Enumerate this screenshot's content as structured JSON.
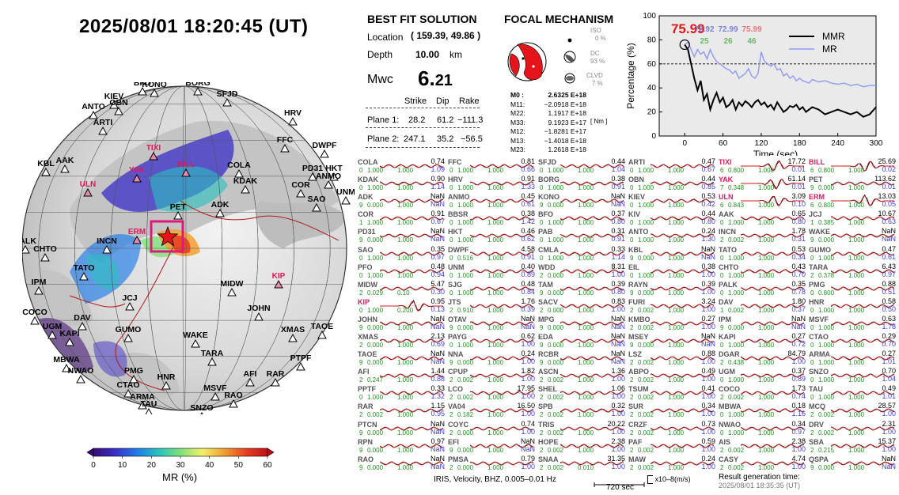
{
  "title": "2025/08/01  18:20:45 (UT)",
  "map": {
    "stations_black": [
      "BFO",
      "KONO",
      "BORG",
      "KIEV",
      "OBN",
      "ANTO",
      "SFJD",
      "ARTI",
      "HRV",
      "DWPF",
      "FFC",
      "KBL",
      "AAK",
      "PD31",
      "HKT",
      "COLA",
      "ANMO",
      "COR",
      "SAO",
      "KDAK",
      "UNM",
      "PALK",
      "CHTO",
      "ADK",
      "PET",
      "INCN",
      "TATO",
      "IPM",
      "MIDW",
      "JCJ",
      "COCO",
      "DAV",
      "JOHN",
      "WAKE",
      "GUMO",
      "UGM",
      "KAPI",
      "XMAS",
      "TAOE",
      "MBWA",
      "NWAO",
      "PTPF",
      "TARA",
      "AFI",
      "RAR",
      "PMG",
      "HNR",
      "CTAO",
      "MSVF",
      "ARMA",
      "TAU",
      "RAO",
      "SNZO"
    ],
    "stations_red": [
      "TIXI",
      "YAK",
      "BILL",
      "ULN",
      "ERM",
      "KIP"
    ],
    "colorbar": {
      "title": "MR (%)",
      "ticks": [
        "0",
        "10",
        "20",
        "30",
        "40",
        "50",
        "60"
      ],
      "colors": [
        "#3b0a73",
        "#3a2ec8",
        "#1f7be8",
        "#27c2c0",
        "#7fe07a",
        "#f3f06a",
        "#f0a030",
        "#e84020",
        "#c01018"
      ]
    }
  },
  "solution": {
    "heading": "BEST FIT SOLUTION",
    "location_label": "Location",
    "location_value": "( 159.39,  49.86 )",
    "depth_label": "Depth",
    "depth_value": "10.00",
    "depth_unit": "km",
    "mw_label": "Mwc",
    "mw_int": "6.",
    "mw_dec": "21",
    "plane_headers": [
      "Strike",
      "Dip",
      "Rake"
    ],
    "planes": [
      {
        "label": "Plane 1:",
        "strike": "28.2",
        "dip": "61.2",
        "rake": "−111.3"
      },
      {
        "label": "Plane 2:",
        "strike": "247.1",
        "dip": "35.2",
        "rake": "−56.5"
      }
    ]
  },
  "focal": {
    "heading": "FOCAL MECHANISM",
    "iso_label": "ISO",
    "iso_value": "0 %",
    "dc_label": "DC",
    "dc_value": "93 %",
    "clvd_label": "CLVD",
    "clvd_value": "7 %",
    "tensor": [
      {
        "k": "M0 :",
        "v": "2.6325 E+18"
      },
      {
        "k": "M11:",
        "v": "−2.0918 E+18"
      },
      {
        "k": "M22:",
        "v": "1.1917 E+18"
      },
      {
        "k": "M33:",
        "v": "9.1923 E+17"
      },
      {
        "k": "M12:",
        "v": "−1.8281 E+17"
      },
      {
        "k": "M13:",
        "v": "−1.4018 E+18"
      },
      {
        "k": "M23:",
        "v": "1.2618 E+18"
      }
    ],
    "unit": "[ Nm ]"
  },
  "chart_data": {
    "type": "line",
    "xlabel": "Time (sec)",
    "ylabel": "Percentage (%)",
    "xlim": [
      -40,
      300
    ],
    "ylim": [
      0,
      100
    ],
    "xticks": [
      0,
      60,
      120,
      180,
      240,
      300
    ],
    "yticks": [
      0,
      20,
      40,
      60,
      80,
      100
    ],
    "threshold": 60,
    "peak_label": "75.99",
    "annotations": [
      {
        "text": "78.92",
        "color": "#7b83d6"
      },
      {
        "text": "72.99",
        "color": "#7b83d6"
      },
      {
        "text": "75.99",
        "color": "#e07a80"
      },
      {
        "text": "25",
        "color": "#6ab86a"
      },
      {
        "text": "26",
        "color": "#6ab86a"
      },
      {
        "text": "46",
        "color": "#6ab86a"
      }
    ],
    "legend": "top-right",
    "series": [
      {
        "name": "MMR",
        "color": "#000000",
        "x": [
          0,
          5,
          10,
          15,
          20,
          25,
          30,
          35,
          40,
          45,
          50,
          55,
          60,
          65,
          70,
          75,
          80,
          85,
          90,
          95,
          100,
          105,
          110,
          115,
          120,
          125,
          130,
          135,
          140,
          145,
          150,
          155,
          160,
          165,
          170,
          175,
          180,
          185,
          190,
          195,
          200,
          210,
          220,
          230,
          240,
          250,
          260,
          270,
          280,
          290,
          300
        ],
        "y": [
          76,
          72,
          60,
          48,
          38,
          46,
          30,
          35,
          22,
          30,
          36,
          28,
          32,
          24,
          26,
          30,
          22,
          28,
          25,
          29,
          27,
          24,
          28,
          30,
          26,
          28,
          24,
          26,
          22,
          28,
          24,
          20,
          22,
          25,
          24,
          26,
          22,
          24,
          20,
          22,
          24,
          22,
          18,
          20,
          22,
          20,
          18,
          20,
          16,
          18,
          24
        ]
      },
      {
        "name": "MR",
        "color": "#8e9af0",
        "x": [
          0,
          5,
          10,
          15,
          20,
          25,
          30,
          35,
          40,
          45,
          50,
          55,
          60,
          65,
          70,
          75,
          80,
          85,
          90,
          95,
          100,
          105,
          110,
          115,
          120,
          125,
          130,
          135,
          140,
          145,
          150,
          155,
          160,
          165,
          170,
          175,
          180,
          185,
          190,
          195,
          200,
          210,
          220,
          230,
          240,
          250,
          260,
          270,
          280,
          290,
          300
        ],
        "y": [
          76,
          78,
          72,
          66,
          72,
          68,
          70,
          64,
          72,
          66,
          62,
          60,
          58,
          56,
          55,
          52,
          54,
          48,
          50,
          52,
          56,
          50,
          48,
          52,
          70,
          62,
          60,
          58,
          60,
          55,
          56,
          50,
          52,
          48,
          50,
          46,
          48,
          46,
          45,
          44,
          47,
          45,
          46,
          44,
          43,
          44,
          42,
          43,
          41,
          42,
          42
        ]
      }
    ]
  },
  "waveforms": [
    [
      [
        "COLA",
        "0.74",
        "1.09",
        "0",
        "1.000",
        "1.000"
      ],
      [
        "KDAK",
        "0.90",
        "1.14",
        "0",
        "1.000",
        "1.000"
      ],
      [
        "ADK",
        "NaN",
        "NaN",
        "9",
        "0.000",
        "1.000"
      ],
      [
        "COR",
        "0.91",
        "0.67",
        "1",
        "1.000",
        "1.000"
      ],
      [
        "PD31",
        "NaN",
        "NaN",
        "9",
        "0.000",
        "1.000"
      ],
      [
        "SAO",
        "0.35",
        "0.97",
        "0",
        "1.000",
        "1.000"
      ],
      [
        "PFO",
        "0.48",
        "0.94",
        "0",
        "1.000",
        "1.000"
      ],
      [
        "MIDW",
        "5.47",
        "0.30",
        "2",
        "0.029",
        "0.10"
      ],
      [
        "KIP",
        "0.95",
        "0.13",
        "0",
        "1.000",
        "0.200"
      ],
      [
        "JOHN",
        "NaN",
        "NaN",
        "9",
        "0.000",
        "1.000"
      ],
      [
        "XMAS",
        "2.13",
        "0.69",
        "2",
        "0.000",
        "1.000"
      ],
      [
        "TAOE",
        "NaN",
        "NaN",
        "9",
        "0.000",
        "1.000"
      ],
      [
        "AFI",
        "1.44",
        "0.88",
        "2",
        "0.247",
        "1.000"
      ],
      [
        "PPTF",
        "0.33",
        "1.32",
        "0",
        "1.000",
        "1.000"
      ],
      [
        "RAR",
        "1.15",
        "0.95",
        "2",
        "0.002",
        "1.000"
      ],
      [
        "PTCN",
        "NaN",
        "NaN",
        "9",
        "0.000",
        "1.000"
      ],
      [
        "RPN",
        "0.97",
        "NaN",
        "9",
        "0.000",
        "1.000"
      ],
      [
        "RAO",
        "NaN",
        "NaN",
        "9",
        "0.000",
        "1.000"
      ]
    ],
    [
      [
        "FFC",
        "0.81",
        "0.66",
        "0",
        "1.000",
        "1.000"
      ],
      [
        "HRV",
        "0.91",
        "1.33",
        "0",
        "1.000",
        "1.000"
      ],
      [
        "ANMO",
        "0.45",
        "0.61",
        "0",
        "1.000",
        "1.000"
      ],
      [
        "BBSR",
        "0.38",
        "1.42",
        "0",
        "1.000",
        "1.000"
      ],
      [
        "HKT",
        "0.46",
        "0.62",
        "0",
        "1.000",
        "1.000"
      ],
      [
        "DWPF",
        "4.58",
        "0.91",
        "0",
        "0.516",
        "1.000"
      ],
      [
        "UNM",
        "0.40",
        "0.89",
        "0",
        "1.000",
        "1.000"
      ],
      [
        "SJG",
        "0.48",
        "0.84",
        "0",
        "1.000",
        "1.000"
      ],
      [
        "JTS",
        "1.76",
        "0.39",
        "2",
        "0.910",
        "1.000"
      ],
      [
        "OTAV",
        "NaN",
        "NaN",
        "9",
        "0.000",
        "1.000"
      ],
      [
        "PAYG",
        "0.62",
        "1.00",
        "0",
        "1.000",
        "1.000"
      ],
      [
        "NNA",
        "0.24",
        "1.00",
        "9",
        "0.000",
        "1.000"
      ],
      [
        "CPUP",
        "1.82",
        "1.00",
        "2",
        "0.002",
        "1.000"
      ],
      [
        "LCO",
        "17.95",
        "1.00",
        "2",
        "0.002",
        "1.000"
      ],
      [
        "VA04",
        "16.50",
        "1.00",
        "2",
        "0.182",
        "1.000"
      ],
      [
        "COYC",
        "0.74",
        "1.00",
        "2",
        "0.000",
        "1.000"
      ],
      [
        "EFI",
        "NaN",
        "NaN",
        "9",
        "0.000",
        "1.000"
      ],
      [
        "PMSA",
        "0.79",
        "1.00",
        "2",
        "0.000",
        "1.000"
      ]
    ],
    [
      [
        "SFJD",
        "0.44",
        "1.04",
        "0",
        "1.000",
        "1.000"
      ],
      [
        "BORG",
        "0.38",
        "0.91",
        "0",
        "1.000",
        "1.000"
      ],
      [
        "KONO",
        "NaN",
        "NaN",
        "9",
        "0.000",
        "1.000"
      ],
      [
        "BFO",
        "0.37",
        "0.80",
        "0",
        "1.000",
        "1.000"
      ],
      [
        "PAB",
        "0.31",
        "0.91",
        "0",
        "1.000",
        "1.000"
      ],
      [
        "CMLA",
        "0.33",
        "1.14",
        "0",
        "1.000",
        "1.000"
      ],
      [
        "WDD",
        "8.31",
        "1.00",
        "2",
        "0.000",
        "1.000"
      ],
      [
        "TAM",
        "0.39",
        "0.80",
        "9",
        "0.000",
        "1.000"
      ],
      [
        "SACV",
        "0.83",
        "1.00",
        "2",
        "0.000",
        "1.000"
      ],
      [
        "MPG",
        "NaN",
        "NaN",
        "9",
        "0.000",
        "1.000"
      ],
      [
        "EDA",
        "NaN",
        "NaN",
        "9",
        "0.000",
        "1.000"
      ],
      [
        "RCBR",
        "NaN",
        "NaN",
        "9",
        "0.000",
        "1.000"
      ],
      [
        "ASCN",
        "1.36",
        "1.00",
        "2",
        "0.002",
        "1.000"
      ],
      [
        "SHEL",
        "1.06",
        "1.00",
        "2",
        "0.002",
        "1.000"
      ],
      [
        "SPB",
        "0.32",
        "1.00",
        "2",
        "0.002",
        "1.000"
      ],
      [
        "TRIS",
        "20.22",
        "1.00",
        "2",
        "0.002",
        "1.000"
      ],
      [
        "HOPE",
        "2.38",
        "1.00",
        "2",
        "0.002",
        "1.000"
      ],
      [
        "SNAA",
        "31.35",
        "1.00",
        "2",
        "0.002",
        "0.010"
      ]
    ],
    [
      [
        "ARTI",
        "0.47",
        "0.67",
        "0",
        "1.000",
        "1.000"
      ],
      [
        "OBN",
        "0.44",
        "0.85",
        "0",
        "1.000",
        "1.000"
      ],
      [
        "KIEV",
        "0.53",
        "0.42",
        "0",
        "1.000",
        "1.000"
      ],
      [
        "KIV",
        "0.44",
        "0.80",
        "0",
        "1.000",
        "1.000"
      ],
      [
        "ANTO",
        "0.24",
        "1.30",
        "0",
        "1.000",
        "1.000"
      ],
      [
        "KBL",
        "NaN",
        "NaN",
        "9",
        "0.000",
        "1.000"
      ],
      [
        "EIL",
        "0.38",
        "1.00",
        "0",
        "1.000",
        "1.000"
      ],
      [
        "RAYN",
        "0.39",
        "1.00",
        "9",
        "0.000",
        "1.000"
      ],
      [
        "FURI",
        "3.24",
        "1.00",
        "2",
        "0.002",
        "1.000"
      ],
      [
        "KMBO",
        "0.27",
        "1.00",
        "2",
        "0.002",
        "1.000"
      ],
      [
        "MSEY",
        "NaN",
        "NaN",
        "9",
        "0.000",
        "1.000"
      ],
      [
        "LSZ",
        "0.88",
        "1.00",
        "2",
        "0.002",
        "1.000"
      ],
      [
        "ABPO",
        "0.49",
        "1.00",
        "2",
        "0.002",
        "1.000"
      ],
      [
        "TSUM",
        "0.41",
        "1.00",
        "2",
        "0.002",
        "1.000"
      ],
      [
        "SUR",
        "0.34",
        "1.00",
        "2",
        "0.002",
        "1.000"
      ],
      [
        "CRZF",
        "0.73",
        "1.00",
        "2",
        "0.002",
        "1.000"
      ],
      [
        "PAF",
        "0.59",
        "1.00",
        "2",
        "0.002",
        "1.000"
      ],
      [
        "MAW",
        "0.24",
        "1.00",
        "2",
        "0.002",
        "1.000"
      ]
    ],
    [
      [
        "TIXI",
        "17.72",
        "0.01",
        "6",
        "0.800",
        "1.000"
      ],
      [
        "YAK",
        "61.14",
        "0.01",
        "7",
        "0.348",
        "1.000"
      ],
      [
        "ULN",
        "3.09",
        "0.10",
        "6",
        "0.843",
        "1.000"
      ],
      [
        "AAK",
        "0.65",
        "0.80",
        "0",
        "1.000",
        "1.000"
      ],
      [
        "INCN",
        "1.78",
        "0.31",
        "2",
        "0.002",
        "1.000"
      ],
      [
        "TATO",
        "0.53",
        "0.34",
        "0",
        "1.000",
        "1.000"
      ],
      [
        "CHTO",
        "0.43",
        "0.70",
        "0",
        "1.000",
        "1.000"
      ],
      [
        "PALK",
        "0.35",
        "0.78",
        "0",
        "1.000",
        "1.000"
      ],
      [
        "DAV",
        "1.80",
        "0.37",
        "1",
        "0.002",
        "1.000"
      ],
      [
        "IPM",
        "NaN",
        "NaN",
        "9",
        "0.000",
        "1.000"
      ],
      [
        "KAPI",
        "0.27",
        "0.72",
        "0",
        "1.000",
        "1.000"
      ],
      [
        "DGAR",
        "84.79",
        "1.00",
        "2",
        "0.438",
        "1.000"
      ],
      [
        "UGM",
        "0.37",
        "0.89",
        "0",
        "1.000",
        "1.000"
      ],
      [
        "COCO",
        "1.73",
        "0.74",
        "2",
        "0.002",
        "1.000"
      ],
      [
        "MBWA",
        "0.18",
        "1.16",
        "0",
        "1.000",
        "1.000"
      ],
      [
        "NWAO",
        "0.34",
        "0.97",
        "0",
        "1.000",
        "1.000"
      ],
      [
        "AIS",
        "2.38",
        "1.00",
        "2",
        "0.002",
        "1.000"
      ],
      [
        "CASY",
        "4.74",
        "1.00",
        "2",
        "0.002",
        "1.000"
      ]
    ],
    [
      [
        "BILL",
        "25.69",
        "0.02",
        "6",
        "0.800",
        "1.000"
      ],
      [
        "PET",
        "113.62",
        "0.01",
        "9",
        "0.000",
        "1.000"
      ],
      [
        "ERM",
        "13.03",
        "0.05",
        "6",
        "0.800",
        "1.000"
      ],
      [
        "JCJ",
        "10.67",
        "0.63",
        "1",
        "0.385",
        "1.000"
      ],
      [
        "WAKE",
        "NaN",
        "NaN",
        "9",
        "0.000",
        "1.000"
      ],
      [
        "GUMO",
        "0.47",
        "0.61",
        "0",
        "1.000",
        "1.000"
      ],
      [
        "TARA",
        "6.43",
        "0.97",
        "2",
        "0.378",
        "1.000"
      ],
      [
        "PMG",
        "0.88",
        "0.51",
        "0",
        "0.800",
        "1.000"
      ],
      [
        "HNR",
        "0.58",
        "0.50",
        "0",
        "1.000",
        "1.000"
      ],
      [
        "MSVF",
        "0.63",
        "1.78",
        "0",
        "1.000",
        "1.000"
      ],
      [
        "CTAO",
        "0.29",
        "0.70",
        "0",
        "1.000",
        "1.000"
      ],
      [
        "ARMA",
        "0.27",
        "1.01",
        "0",
        "1.000",
        "1.000"
      ],
      [
        "SNZO",
        "0.70",
        "1.04",
        "0",
        "1.000",
        "1.000"
      ],
      [
        "TAU",
        "0.49",
        "1.01",
        "0",
        "1.000",
        "1.000"
      ],
      [
        "MCQ",
        "28.57",
        "1.00",
        "2",
        "0.002",
        "1.000"
      ],
      [
        "DRV",
        "2.31",
        "1.00",
        "2",
        "0.002",
        "1.000"
      ],
      [
        "SBA",
        "15.37",
        "1.00",
        "2",
        "0.215",
        "1.000"
      ],
      [
        "QSPA",
        "NaN",
        "NaN",
        "9",
        "0.000",
        "1.000"
      ]
    ]
  ],
  "red_waveform_stations": [
    "TIXI",
    "YAK",
    "ULN",
    "BILL",
    "ERM",
    "KIP"
  ],
  "footer": {
    "left": "IRIS, Velocity,   BHZ,  0.005–0.01 Hz",
    "scale_label": "720 sec",
    "units": "x10–8(m/s)",
    "result_label": "Result generation time:",
    "result_time": "2025/08/01  18:35:35 (UT)"
  }
}
